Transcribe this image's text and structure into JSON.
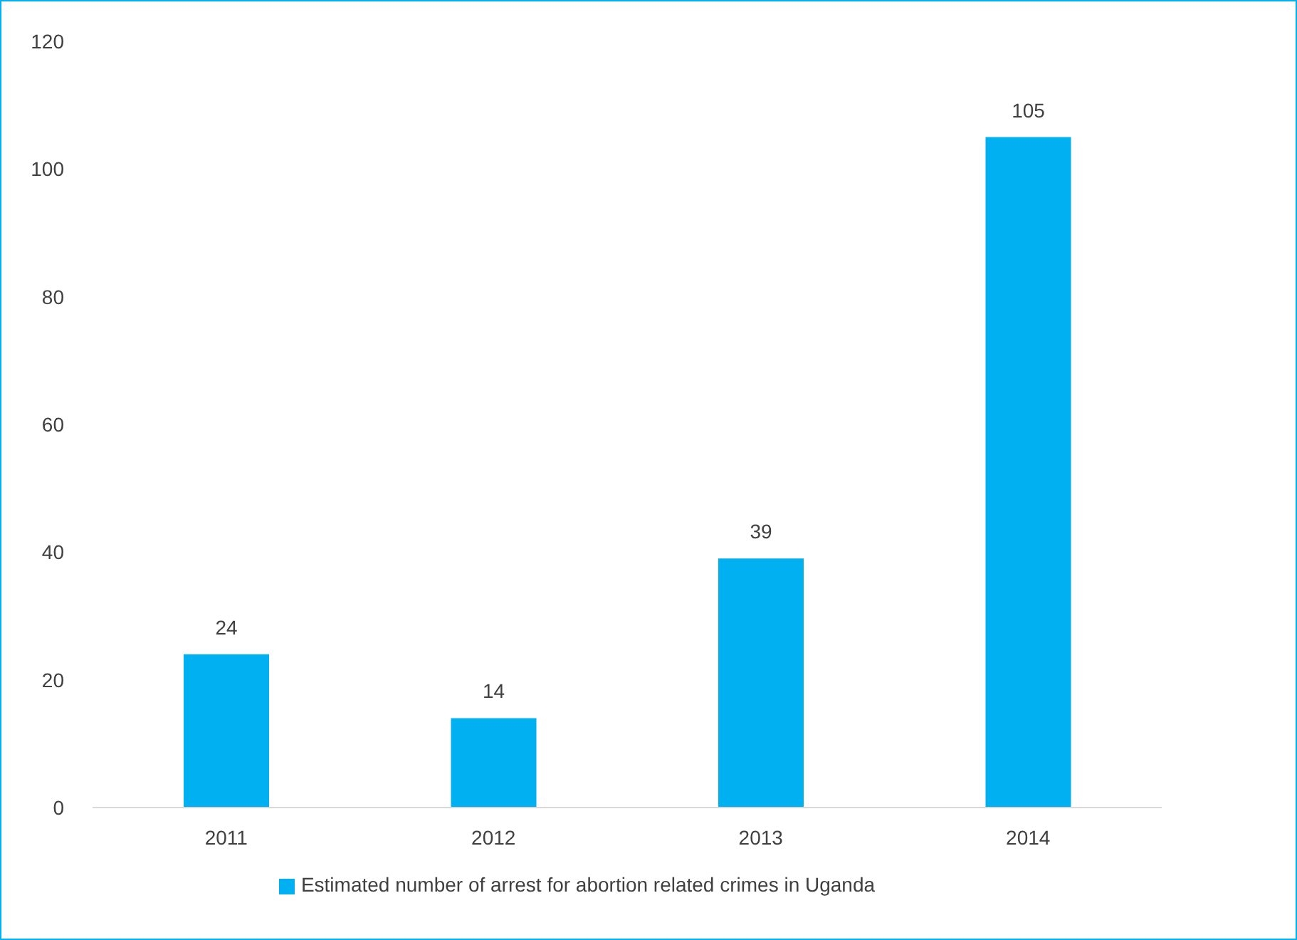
{
  "chart_data": {
    "type": "bar",
    "categories": [
      "2011",
      "2012",
      "2013",
      "2014"
    ],
    "series": [
      {
        "name": "Estimated number of arrest for abortion related crimes in Uganda",
        "color": "#00b0f0",
        "values": [
          24,
          14,
          39,
          105
        ]
      }
    ],
    "ylim": [
      0,
      120
    ],
    "yticks": [
      0,
      20,
      40,
      60,
      80,
      100,
      120
    ],
    "grid": false,
    "legend": "bottom",
    "data_labels": true
  }
}
